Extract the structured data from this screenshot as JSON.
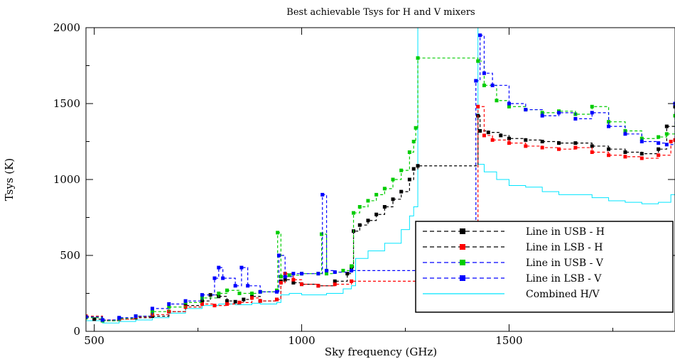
{
  "chart_data": {
    "type": "line",
    "title": "Best achievable Tsys for H and V mixers",
    "xlabel": "Sky frequency (GHz)",
    "ylabel": "Tsys (K)",
    "xlim": [
      480,
      1900
    ],
    "ylim": [
      0,
      2000
    ],
    "xticks": [
      500,
      1000,
      1500
    ],
    "yticks": [
      0,
      500,
      1000,
      1500,
      2000
    ],
    "grid": false,
    "legend_position": "bottom-right",
    "series": [
      {
        "name": "Line in USB - H",
        "color": "#000000",
        "style": "dashed-square",
        "points": [
          [
            480,
            95
          ],
          [
            500,
            80
          ],
          [
            520,
            70
          ],
          [
            560,
            80
          ],
          [
            600,
            90
          ],
          [
            640,
            100
          ],
          [
            680,
            130
          ],
          [
            720,
            170
          ],
          [
            760,
            200
          ],
          [
            780,
            240
          ],
          [
            800,
            230
          ],
          [
            820,
            200
          ],
          [
            840,
            195
          ],
          [
            860,
            210
          ],
          [
            880,
            230
          ],
          [
            900,
            200
          ],
          [
            940,
            210
          ],
          [
            950,
            330
          ],
          [
            960,
            340
          ],
          [
            980,
            320
          ],
          [
            1000,
            310
          ],
          [
            1040,
            300
          ],
          [
            1080,
            330
          ],
          [
            1110,
            380
          ],
          [
            1120,
            420
          ],
          [
            1125,
            660
          ],
          [
            1140,
            700
          ],
          [
            1160,
            730
          ],
          [
            1180,
            770
          ],
          [
            1200,
            820
          ],
          [
            1220,
            870
          ],
          [
            1240,
            920
          ],
          [
            1260,
            1000
          ],
          [
            1270,
            1070
          ],
          [
            1280,
            1090
          ],
          [
            1425,
            1420
          ],
          [
            1430,
            1320
          ],
          [
            1450,
            1310
          ],
          [
            1480,
            1290
          ],
          [
            1500,
            1270
          ],
          [
            1540,
            1260
          ],
          [
            1580,
            1250
          ],
          [
            1620,
            1240
          ],
          [
            1660,
            1240
          ],
          [
            1700,
            1220
          ],
          [
            1740,
            1200
          ],
          [
            1780,
            1180
          ],
          [
            1820,
            1170
          ],
          [
            1860,
            1200
          ],
          [
            1880,
            1350
          ],
          [
            1900,
            1480
          ]
        ]
      },
      {
        "name": "Line in LSB - H",
        "color": "#ff0000",
        "style": "dashed-square",
        "points": [
          [
            480,
            100
          ],
          [
            520,
            75
          ],
          [
            560,
            80
          ],
          [
            600,
            95
          ],
          [
            640,
            110
          ],
          [
            680,
            130
          ],
          [
            720,
            160
          ],
          [
            760,
            180
          ],
          [
            790,
            170
          ],
          [
            820,
            180
          ],
          [
            850,
            190
          ],
          [
            880,
            220
          ],
          [
            900,
            200
          ],
          [
            940,
            210
          ],
          [
            950,
            320
          ],
          [
            960,
            380
          ],
          [
            980,
            340
          ],
          [
            1000,
            310
          ],
          [
            1040,
            300
          ],
          [
            1080,
            310
          ],
          [
            1120,
            330
          ],
          [
            1425,
            1480
          ],
          [
            1440,
            1290
          ],
          [
            1460,
            1260
          ],
          [
            1500,
            1240
          ],
          [
            1540,
            1220
          ],
          [
            1580,
            1210
          ],
          [
            1620,
            1200
          ],
          [
            1660,
            1210
          ],
          [
            1700,
            1180
          ],
          [
            1740,
            1160
          ],
          [
            1780,
            1150
          ],
          [
            1820,
            1140
          ],
          [
            1860,
            1160
          ],
          [
            1890,
            1250
          ],
          [
            1900,
            1260
          ]
        ]
      },
      {
        "name": "Line in USB - V",
        "color": "#00cc00",
        "style": "dashed-square",
        "points": [
          [
            480,
            90
          ],
          [
            520,
            70
          ],
          [
            560,
            85
          ],
          [
            600,
            100
          ],
          [
            640,
            130
          ],
          [
            680,
            160
          ],
          [
            720,
            190
          ],
          [
            760,
            220
          ],
          [
            800,
            250
          ],
          [
            820,
            270
          ],
          [
            850,
            250
          ],
          [
            880,
            250
          ],
          [
            900,
            260
          ],
          [
            940,
            270
          ],
          [
            942,
            650
          ],
          [
            950,
            360
          ],
          [
            970,
            370
          ],
          [
            1000,
            380
          ],
          [
            1040,
            380
          ],
          [
            1048,
            640
          ],
          [
            1060,
            380
          ],
          [
            1080,
            390
          ],
          [
            1100,
            400
          ],
          [
            1120,
            430
          ],
          [
            1125,
            780
          ],
          [
            1140,
            820
          ],
          [
            1160,
            860
          ],
          [
            1180,
            900
          ],
          [
            1200,
            940
          ],
          [
            1220,
            1000
          ],
          [
            1240,
            1060
          ],
          [
            1260,
            1180
          ],
          [
            1270,
            1250
          ],
          [
            1275,
            1340
          ],
          [
            1280,
            1800
          ],
          [
            1425,
            1780
          ],
          [
            1440,
            1620
          ],
          [
            1470,
            1520
          ],
          [
            1500,
            1480
          ],
          [
            1540,
            1460
          ],
          [
            1580,
            1440
          ],
          [
            1620,
            1450
          ],
          [
            1660,
            1430
          ],
          [
            1700,
            1480
          ],
          [
            1740,
            1380
          ],
          [
            1780,
            1320
          ],
          [
            1820,
            1270
          ],
          [
            1860,
            1280
          ],
          [
            1880,
            1300
          ],
          [
            1900,
            1420
          ]
        ]
      },
      {
        "name": "Line in LSB - V",
        "color": "#0000ff",
        "style": "dashed-square",
        "points": [
          [
            480,
            95
          ],
          [
            520,
            75
          ],
          [
            560,
            90
          ],
          [
            600,
            100
          ],
          [
            640,
            150
          ],
          [
            680,
            180
          ],
          [
            720,
            200
          ],
          [
            760,
            240
          ],
          [
            790,
            350
          ],
          [
            800,
            420
          ],
          [
            810,
            350
          ],
          [
            840,
            300
          ],
          [
            855,
            420
          ],
          [
            870,
            300
          ],
          [
            900,
            260
          ],
          [
            940,
            260
          ],
          [
            945,
            500
          ],
          [
            960,
            360
          ],
          [
            980,
            380
          ],
          [
            1000,
            380
          ],
          [
            1040,
            380
          ],
          [
            1050,
            900
          ],
          [
            1060,
            400
          ],
          [
            1080,
            390
          ],
          [
            1120,
            400
          ],
          [
            1420,
            1650
          ],
          [
            1430,
            1950
          ],
          [
            1440,
            1700
          ],
          [
            1460,
            1620
          ],
          [
            1500,
            1500
          ],
          [
            1540,
            1460
          ],
          [
            1580,
            1420
          ],
          [
            1620,
            1440
          ],
          [
            1660,
            1400
          ],
          [
            1700,
            1440
          ],
          [
            1740,
            1350
          ],
          [
            1780,
            1300
          ],
          [
            1820,
            1250
          ],
          [
            1860,
            1240
          ],
          [
            1880,
            1230
          ],
          [
            1900,
            1500
          ]
        ]
      },
      {
        "name": "Combined H/V",
        "color": "#00e5ff",
        "style": "solid",
        "points": [
          [
            480,
            70
          ],
          [
            520,
            55
          ],
          [
            560,
            65
          ],
          [
            600,
            75
          ],
          [
            640,
            90
          ],
          [
            680,
            120
          ],
          [
            720,
            150
          ],
          [
            760,
            170
          ],
          [
            800,
            180
          ],
          [
            840,
            175
          ],
          [
            880,
            185
          ],
          [
            900,
            180
          ],
          [
            940,
            190
          ],
          [
            950,
            240
          ],
          [
            970,
            250
          ],
          [
            1000,
            240
          ],
          [
            1040,
            240
          ],
          [
            1060,
            250
          ],
          [
            1100,
            280
          ],
          [
            1120,
            300
          ],
          [
            1130,
            480
          ],
          [
            1160,
            530
          ],
          [
            1200,
            580
          ],
          [
            1240,
            670
          ],
          [
            1260,
            760
          ],
          [
            1270,
            820
          ],
          [
            1280,
            2000
          ],
          [
            1420,
            2000
          ],
          [
            1425,
            1100
          ],
          [
            1440,
            1050
          ],
          [
            1470,
            1000
          ],
          [
            1500,
            960
          ],
          [
            1540,
            950
          ],
          [
            1580,
            920
          ],
          [
            1620,
            900
          ],
          [
            1660,
            900
          ],
          [
            1700,
            880
          ],
          [
            1740,
            860
          ],
          [
            1780,
            850
          ],
          [
            1820,
            840
          ],
          [
            1860,
            850
          ],
          [
            1890,
            900
          ],
          [
            1900,
            980
          ]
        ]
      }
    ]
  }
}
